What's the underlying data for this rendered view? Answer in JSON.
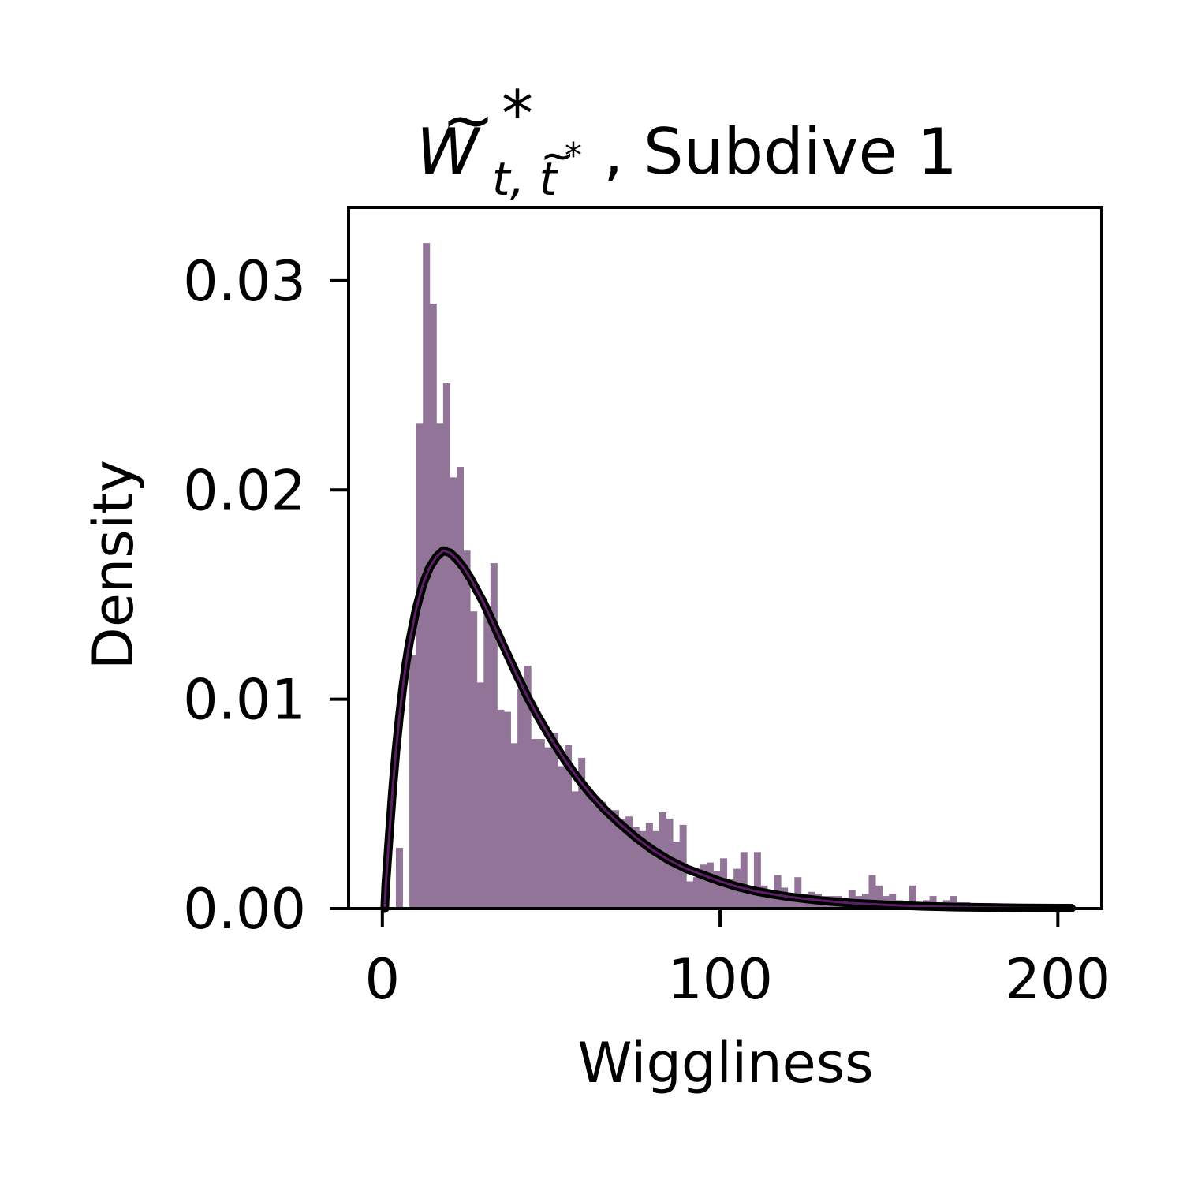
{
  "chart_data": {
    "type": "bar",
    "title": {
      "symbol": "W",
      "symbol_tilde": "~",
      "superscript": "*",
      "subscript": "t, t",
      "subscript_tilde": "~",
      "subscript_sup": "*",
      "suffix": ", Subdive 1"
    },
    "xlabel": "Wiggliness",
    "ylabel": "Density",
    "xlim": [
      -10,
      213
    ],
    "ylim": [
      0,
      0.0335
    ],
    "xticks": [
      0,
      100,
      200
    ],
    "xtick_labels": [
      "0",
      "100",
      "200"
    ],
    "yticks": [
      0,
      0.01,
      0.02,
      0.03
    ],
    "ytick_labels": [
      "0.00",
      "0.01",
      "0.02",
      "0.03"
    ],
    "grid": false,
    "legend": "none",
    "colors": {
      "histogram": "#917498",
      "curve_outer": "#000000",
      "curve_inner": "#5b1f66"
    },
    "histogram": {
      "bin_width": 2.0,
      "bins": [
        [
          4,
          0.0029
        ],
        [
          6,
          0.0
        ],
        [
          8,
          0.0121
        ],
        [
          10,
          0.0232
        ],
        [
          12,
          0.0318
        ],
        [
          14,
          0.0289
        ],
        [
          16,
          0.0232
        ],
        [
          18,
          0.0251
        ],
        [
          20,
          0.0206
        ],
        [
          22,
          0.0211
        ],
        [
          24,
          0.0171
        ],
        [
          26,
          0.0142
        ],
        [
          28,
          0.0108
        ],
        [
          30,
          0.0142
        ],
        [
          32,
          0.0165
        ],
        [
          34,
          0.0095
        ],
        [
          36,
          0.0094
        ],
        [
          38,
          0.0079
        ],
        [
          40,
          0.0105
        ],
        [
          42,
          0.0116
        ],
        [
          44,
          0.0081
        ],
        [
          46,
          0.0081
        ],
        [
          48,
          0.0077
        ],
        [
          50,
          0.0084
        ],
        [
          52,
          0.0068
        ],
        [
          54,
          0.0078
        ],
        [
          56,
          0.0056
        ],
        [
          58,
          0.0072
        ],
        [
          60,
          0.0057
        ],
        [
          62,
          0.005
        ],
        [
          64,
          0.0051
        ],
        [
          66,
          0.0044
        ],
        [
          68,
          0.0047
        ],
        [
          70,
          0.0043
        ],
        [
          72,
          0.0044
        ],
        [
          74,
          0.0039
        ],
        [
          76,
          0.0037
        ],
        [
          78,
          0.0041
        ],
        [
          80,
          0.0037
        ],
        [
          82,
          0.0046
        ],
        [
          84,
          0.0043
        ],
        [
          86,
          0.0032
        ],
        [
          88,
          0.004
        ],
        [
          90,
          0.0013
        ],
        [
          92,
          0.0015
        ],
        [
          94,
          0.0021
        ],
        [
          96,
          0.0022
        ],
        [
          98,
          0.0018
        ],
        [
          100,
          0.0024
        ],
        [
          102,
          0.0014
        ],
        [
          104,
          0.0019
        ],
        [
          106,
          0.0027
        ],
        [
          108,
          0.0007
        ],
        [
          110,
          0.0027
        ],
        [
          112,
          0.0011
        ],
        [
          114,
          0.0008
        ],
        [
          116,
          0.0016
        ],
        [
          118,
          0.001
        ],
        [
          120,
          0.0007
        ],
        [
          122,
          0.0015
        ],
        [
          124,
          0.0007
        ],
        [
          126,
          0.0008
        ],
        [
          128,
          0.0007
        ],
        [
          130,
          0.0006
        ],
        [
          132,
          0.0006
        ],
        [
          134,
          0.0006
        ],
        [
          136,
          0.0005
        ],
        [
          138,
          0.0009
        ],
        [
          140,
          0.0006
        ],
        [
          142,
          0.0007
        ],
        [
          144,
          0.0016
        ],
        [
          146,
          0.0011
        ],
        [
          148,
          0.0006
        ],
        [
          150,
          0.0007
        ],
        [
          152,
          0.0004
        ],
        [
          154,
          0.0003
        ],
        [
          156,
          0.0011
        ],
        [
          158,
          0.0003
        ],
        [
          160,
          0.0004
        ],
        [
          162,
          0.0006
        ],
        [
          164,
          0.0003
        ],
        [
          166,
          0.0004
        ],
        [
          168,
          0.0006
        ],
        [
          170,
          0.0003
        ],
        [
          172,
          0.0003
        ],
        [
          174,
          0.0002
        ],
        [
          176,
          0.0002
        ],
        [
          178,
          0.0001
        ],
        [
          180,
          0.0002
        ],
        [
          182,
          0.0002
        ]
      ]
    },
    "fit_curve": {
      "x": [
        0.7,
        1,
        2,
        3,
        4,
        5,
        6,
        7,
        8,
        10,
        12,
        14,
        16,
        18,
        20,
        22,
        24,
        26,
        28,
        30,
        32,
        34,
        36,
        38,
        40,
        43,
        46,
        50,
        54,
        58,
        62,
        66,
        70,
        75,
        80,
        85,
        90,
        95,
        100,
        105,
        110,
        115,
        120,
        125,
        130,
        135,
        140,
        145,
        150,
        155,
        160,
        165,
        170,
        175,
        180,
        185,
        190,
        195,
        200,
        204
      ],
      "y": [
        0.0,
        0.0011,
        0.0034,
        0.0056,
        0.0075,
        0.0091,
        0.0105,
        0.0117,
        0.0127,
        0.0143,
        0.0155,
        0.0163,
        0.0168,
        0.0171,
        0.017,
        0.0167,
        0.0163,
        0.0158,
        0.0152,
        0.0146,
        0.0139,
        0.0132,
        0.0125,
        0.0118,
        0.0111,
        0.0101,
        0.0092,
        0.0081,
        0.0071,
        0.0062,
        0.0054,
        0.0047,
        0.0041,
        0.0034,
        0.0028,
        0.0023,
        0.0019,
        0.0016,
        0.0013,
        0.00105,
        0.00085,
        0.0007,
        0.00057,
        0.00047,
        0.00038,
        0.00031,
        0.00025,
        0.00021,
        0.00017,
        0.00014,
        0.00011,
        9e-05,
        7e-05,
        6e-05,
        5e-05,
        4e-05,
        3e-05,
        2.5e-05,
        2e-05,
        2e-05
      ]
    }
  }
}
